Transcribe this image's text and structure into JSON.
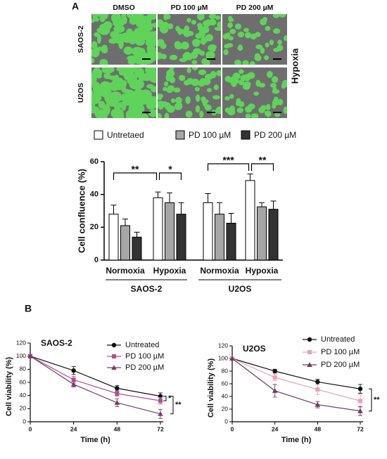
{
  "panel_a": {
    "label": "A",
    "columns": [
      "DMSO",
      "PD 100 µM",
      "PD 200 µM"
    ],
    "rows": [
      "SAOS-2",
      "U2OS"
    ],
    "condition": "Hypoxia"
  },
  "panel_b": {
    "label": "B"
  },
  "chart_data": [
    {
      "type": "bar",
      "ylabel": "Cell confluence (%)",
      "categories": [
        "Normoxia",
        "Hypoxia",
        "Normoxia",
        "Hypoxia"
      ],
      "groups": [
        "SAOS-2",
        "U2OS"
      ],
      "ylim": [
        0,
        60
      ],
      "yticks": [
        0,
        20,
        40,
        60
      ],
      "series": [
        {
          "name": "Untretaed",
          "color": "#ffffff",
          "values": [
            28,
            38,
            35,
            48.5
          ],
          "errors": [
            5.5,
            3.5,
            5.5,
            4
          ]
        },
        {
          "name": "PD 100 µM",
          "color": "#a6a6a6",
          "values": [
            21,
            35,
            28,
            32.5
          ],
          "errors": [
            4,
            6,
            7,
            2.5
          ]
        },
        {
          "name": "PD 200 µM",
          "color": "#333333",
          "values": [
            14,
            28,
            22.5,
            31
          ],
          "errors": [
            3,
            7,
            6,
            5
          ]
        }
      ],
      "annotations": [
        "**",
        "*",
        "***",
        "**"
      ]
    },
    {
      "type": "line",
      "title": "SAOS-2",
      "xlabel": "Time (h)",
      "ylabel": "Cell viability (%)",
      "x": [
        0,
        24,
        48,
        72
      ],
      "xlim": [
        0,
        72
      ],
      "xticks": [
        0,
        24,
        48,
        72
      ],
      "ylim": [
        0,
        120
      ],
      "yticks": [
        0,
        20,
        40,
        60,
        80,
        100,
        120
      ],
      "series": [
        {
          "name": "Untreated",
          "color": "#111111",
          "marker": "circle",
          "values": [
            100,
            78,
            51,
            39
          ],
          "errors": [
            0,
            6,
            4,
            5
          ]
        },
        {
          "name": "PD 100 µM",
          "color": "#b0508f",
          "marker": "square",
          "values": [
            100,
            64,
            43,
            32
          ],
          "errors": [
            0,
            5,
            4,
            5
          ]
        },
        {
          "name": "PD 200 µM",
          "color": "#7a3a6a",
          "marker": "triangle",
          "values": [
            100,
            57,
            29,
            12
          ],
          "errors": [
            0,
            4,
            6,
            7
          ]
        }
      ],
      "annotations": [
        "*",
        "**"
      ]
    },
    {
      "type": "line",
      "title": "U2OS",
      "xlabel": "Time (h)",
      "ylabel": "Cell viability (%)",
      "x": [
        0,
        24,
        48,
        72
      ],
      "xlim": [
        0,
        72
      ],
      "xticks": [
        0,
        24,
        48,
        72
      ],
      "ylim": [
        0,
        120
      ],
      "yticks": [
        0,
        20,
        40,
        60,
        80,
        100,
        120
      ],
      "series": [
        {
          "name": "Untreated",
          "color": "#111111",
          "marker": "circle",
          "values": [
            100,
            80,
            63,
            52
          ],
          "errors": [
            0,
            3,
            4,
            7
          ]
        },
        {
          "name": "PD 100 µM",
          "color": "#e8a0b8",
          "marker": "square",
          "values": [
            100,
            70,
            51,
            33
          ],
          "errors": [
            0,
            5,
            8,
            10
          ]
        },
        {
          "name": "PD 200 µM",
          "color": "#6b3a5e",
          "marker": "triangle",
          "values": [
            100,
            49,
            27,
            17
          ],
          "errors": [
            0,
            10,
            5,
            7
          ]
        }
      ],
      "annotations": [
        "**"
      ]
    }
  ]
}
